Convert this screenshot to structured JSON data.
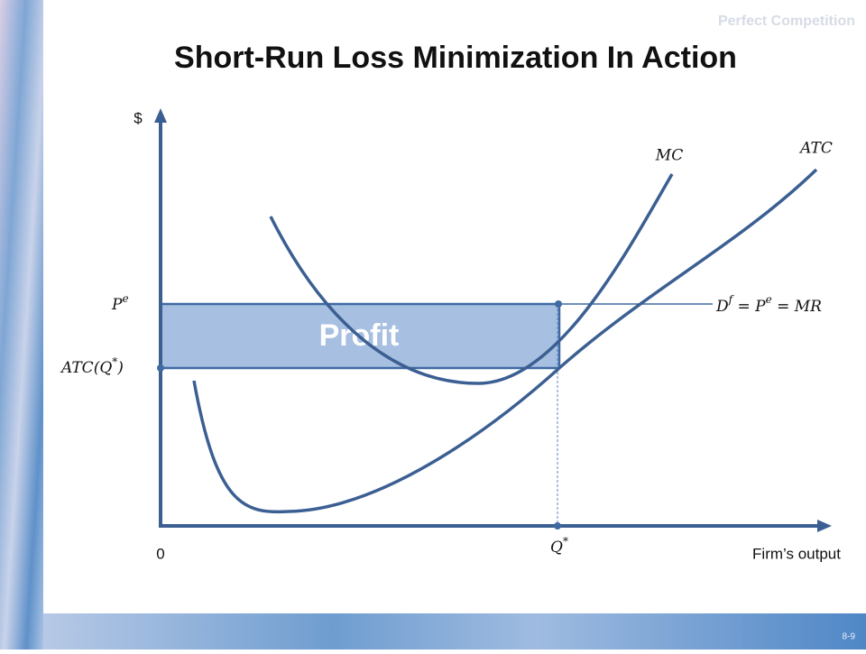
{
  "header": {
    "section": "Perfect Competition",
    "title": "Short-Run Loss Minimization In Action"
  },
  "diagram": {
    "y_axis_label": "$",
    "origin_label": "0",
    "x_axis_label": "Firm’s output",
    "mc_label": "MC",
    "atc_label": "ATC",
    "price_label": {
      "base": "P",
      "sup": "e"
    },
    "atc_q_label": {
      "base": "ATC(Q",
      "sup": "*",
      "close": ")"
    },
    "demand_label": {
      "d": "D",
      "d_sup": "f",
      "eq1": " = ",
      "p": "P",
      "p_sup": "e",
      "eq2": " = MR"
    },
    "quantity_label": {
      "base": "Q",
      "sup": "*"
    },
    "area_label": "Profit"
  },
  "footer": {
    "page": "8-9"
  }
}
